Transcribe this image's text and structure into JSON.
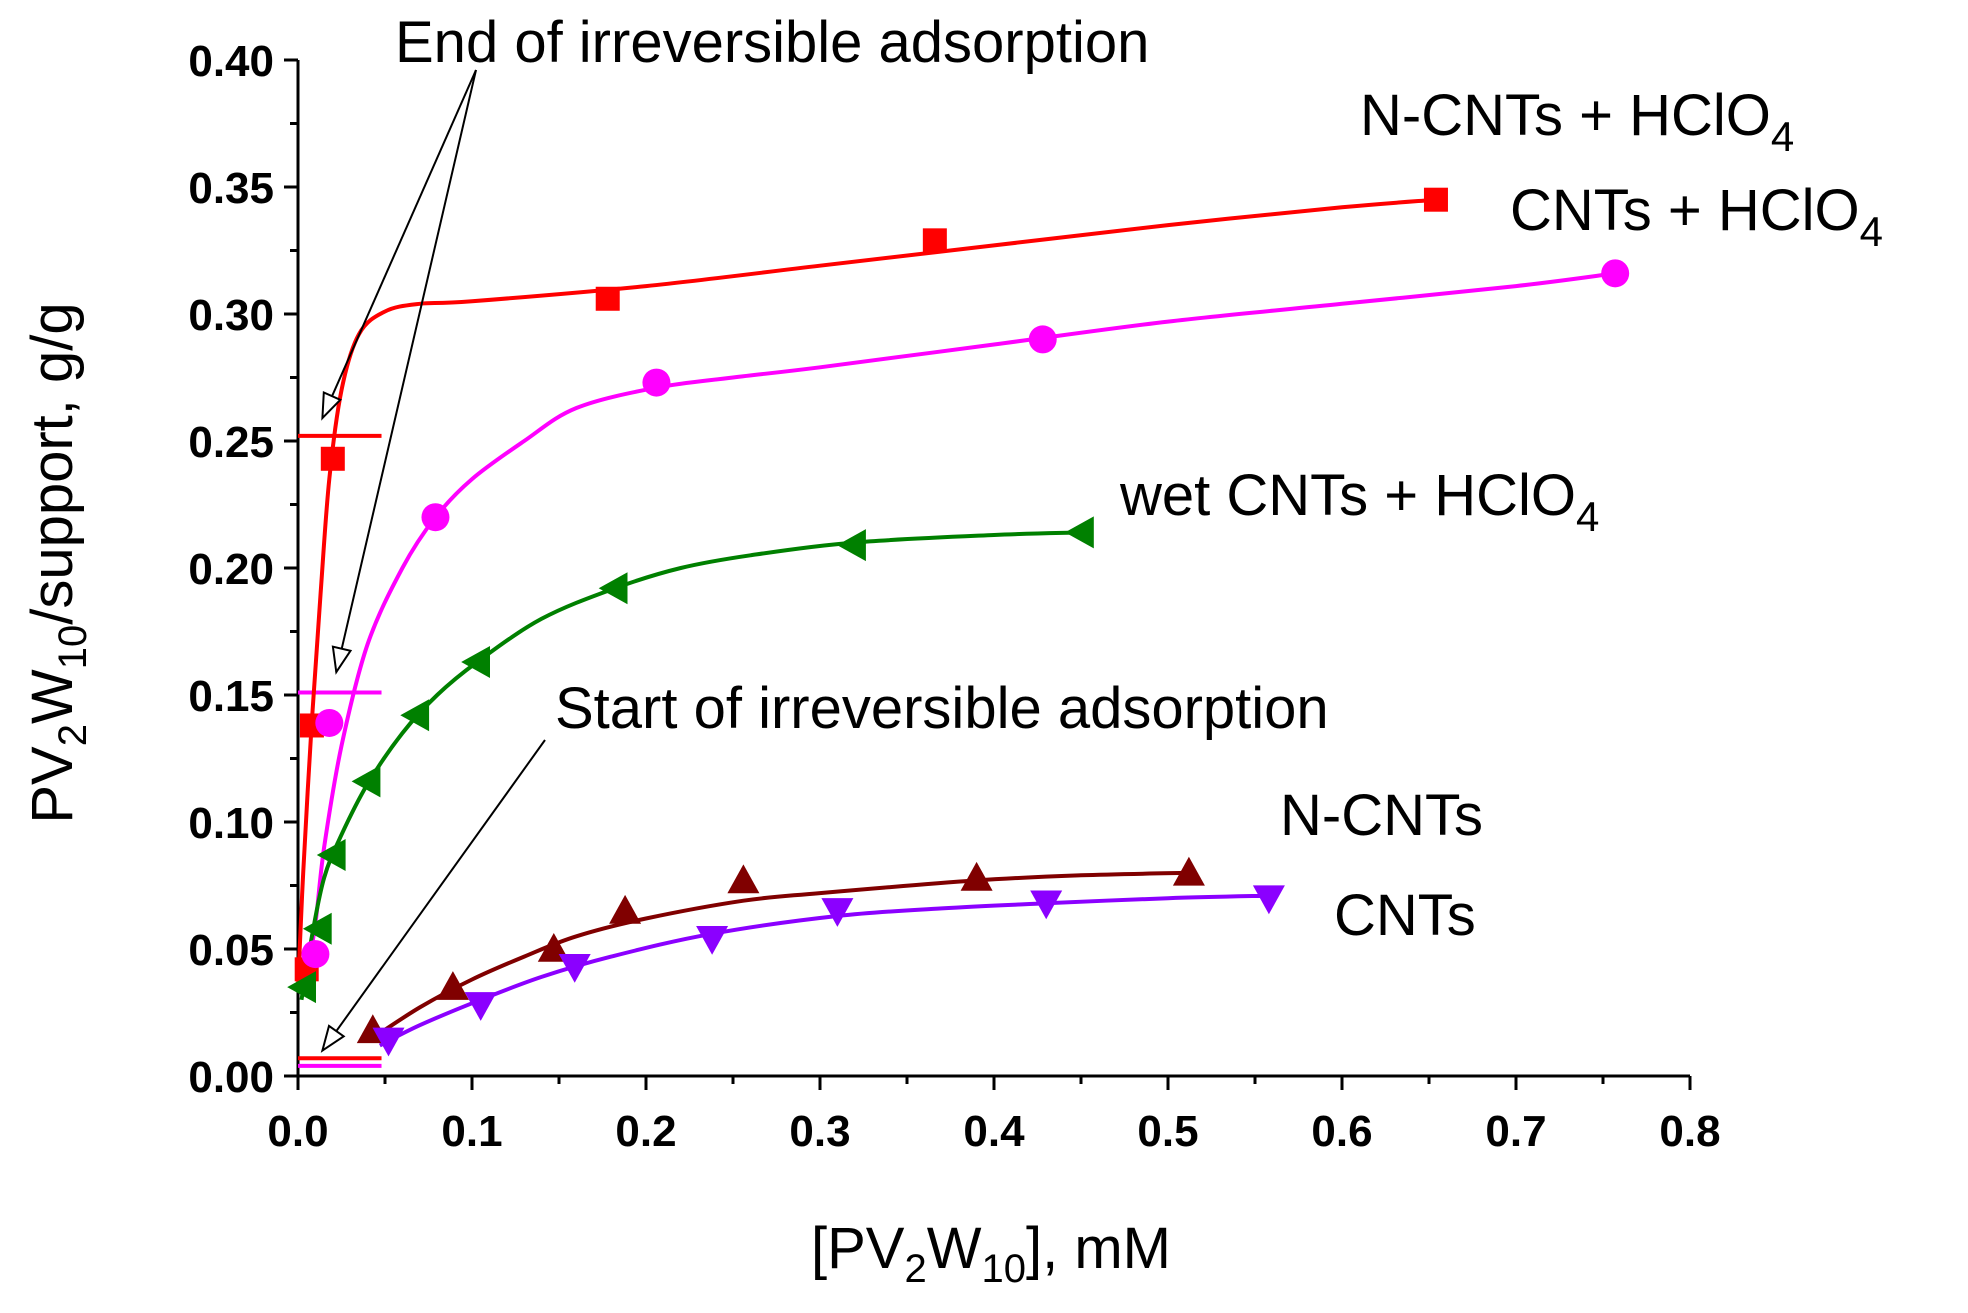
{
  "chart_data": {
    "type": "scatter",
    "title": "",
    "xlabel": {
      "prefix": "[PV",
      "sub1": "2",
      "mid": "W",
      "sub2": "10",
      "suffix": "], mM"
    },
    "ylabel": {
      "prefix": "PV",
      "sub1": "2",
      "mid": "W",
      "sub2": "10",
      "suffix": "/support, g/g"
    },
    "xlim": [
      0,
      0.8
    ],
    "ylim": [
      0,
      0.4
    ],
    "x_ticks": [
      "0.0",
      "0.1",
      "0.2",
      "0.3",
      "0.4",
      "0.5",
      "0.6",
      "0.7",
      "0.8"
    ],
    "y_ticks": [
      "0.00",
      "0.05",
      "0.10",
      "0.15",
      "0.20",
      "0.25",
      "0.30",
      "0.35",
      "0.40"
    ],
    "grid": false,
    "series": [
      {
        "name": "N-CNTs + HClO4",
        "label": {
          "text": "N-CNTs + HClO",
          "sub": "4"
        },
        "color": "#ff0000",
        "marker": "square",
        "points": [
          [
            0.005,
            0.042
          ],
          [
            0.008,
            0.138
          ],
          [
            0.02,
            0.243
          ],
          [
            0.178,
            0.306
          ],
          [
            0.366,
            0.329
          ],
          [
            0.654,
            0.345
          ]
        ],
        "curve": [
          [
            0,
            0.035
          ],
          [
            0.003,
            0.08
          ],
          [
            0.008,
            0.14
          ],
          [
            0.013,
            0.19
          ],
          [
            0.018,
            0.235
          ],
          [
            0.025,
            0.27
          ],
          [
            0.035,
            0.292
          ],
          [
            0.05,
            0.301
          ],
          [
            0.07,
            0.304
          ],
          [
            0.1,
            0.305
          ],
          [
            0.2,
            0.311
          ],
          [
            0.3,
            0.319
          ],
          [
            0.4,
            0.327
          ],
          [
            0.5,
            0.335
          ],
          [
            0.6,
            0.342
          ],
          [
            0.654,
            0.345
          ]
        ]
      },
      {
        "name": "CNTs + HClO4",
        "label": {
          "text": "CNTs + HClO",
          "sub": "4"
        },
        "color": "#ff00ff",
        "marker": "circle",
        "points": [
          [
            0.01,
            0.048
          ],
          [
            0.018,
            0.139
          ],
          [
            0.079,
            0.22
          ],
          [
            0.206,
            0.273
          ],
          [
            0.428,
            0.29
          ],
          [
            0.757,
            0.316
          ]
        ],
        "curve": [
          [
            0.005,
            0.04
          ],
          [
            0.01,
            0.06
          ],
          [
            0.015,
            0.09
          ],
          [
            0.025,
            0.13
          ],
          [
            0.04,
            0.17
          ],
          [
            0.06,
            0.2
          ],
          [
            0.079,
            0.22
          ],
          [
            0.1,
            0.235
          ],
          [
            0.13,
            0.25
          ],
          [
            0.16,
            0.263
          ],
          [
            0.206,
            0.271
          ],
          [
            0.25,
            0.275
          ],
          [
            0.3,
            0.279
          ],
          [
            0.4,
            0.288
          ],
          [
            0.5,
            0.297
          ],
          [
            0.6,
            0.304
          ],
          [
            0.7,
            0.311
          ],
          [
            0.757,
            0.316
          ]
        ]
      },
      {
        "name": "wet CNTs + HClO4",
        "label": {
          "text": "wet CNTs + HClO",
          "sub": "4"
        },
        "color": "#008000",
        "marker": "triangle-left",
        "points": [
          [
            0.003,
            0.035
          ],
          [
            0.012,
            0.058
          ],
          [
            0.02,
            0.087
          ],
          [
            0.04,
            0.116
          ],
          [
            0.068,
            0.142
          ],
          [
            0.103,
            0.163
          ],
          [
            0.182,
            0.192
          ],
          [
            0.319,
            0.209
          ],
          [
            0.45,
            0.214
          ]
        ],
        "curve": [
          [
            0.002,
            0.03
          ],
          [
            0.008,
            0.055
          ],
          [
            0.015,
            0.078
          ],
          [
            0.025,
            0.095
          ],
          [
            0.04,
            0.115
          ],
          [
            0.06,
            0.135
          ],
          [
            0.08,
            0.15
          ],
          [
            0.103,
            0.163
          ],
          [
            0.14,
            0.18
          ],
          [
            0.182,
            0.192
          ],
          [
            0.22,
            0.2
          ],
          [
            0.26,
            0.205
          ],
          [
            0.319,
            0.21
          ],
          [
            0.4,
            0.213
          ],
          [
            0.45,
            0.214
          ]
        ]
      },
      {
        "name": "N-CNTs",
        "label": {
          "text": "N-CNTs",
          "sub": ""
        },
        "color": "#800000",
        "marker": "triangle-up",
        "points": [
          [
            0.043,
            0.018
          ],
          [
            0.089,
            0.035
          ],
          [
            0.147,
            0.05
          ],
          [
            0.188,
            0.065
          ],
          [
            0.256,
            0.077
          ],
          [
            0.39,
            0.078
          ],
          [
            0.512,
            0.08
          ]
        ],
        "curve": [
          [
            0.043,
            0.015
          ],
          [
            0.07,
            0.027
          ],
          [
            0.1,
            0.038
          ],
          [
            0.13,
            0.047
          ],
          [
            0.16,
            0.055
          ],
          [
            0.2,
            0.062
          ],
          [
            0.256,
            0.069
          ],
          [
            0.3,
            0.072
          ],
          [
            0.39,
            0.077
          ],
          [
            0.45,
            0.079
          ],
          [
            0.512,
            0.08
          ]
        ]
      },
      {
        "name": "CNTs",
        "label": {
          "text": "CNTs",
          "sub": ""
        },
        "color": "#8b00ff",
        "marker": "triangle-down",
        "points": [
          [
            0.052,
            0.014
          ],
          [
            0.105,
            0.028
          ],
          [
            0.159,
            0.043
          ],
          [
            0.238,
            0.054
          ],
          [
            0.31,
            0.065
          ],
          [
            0.43,
            0.068
          ],
          [
            0.558,
            0.07
          ]
        ],
        "curve": [
          [
            0.047,
            0.012
          ],
          [
            0.07,
            0.02
          ],
          [
            0.105,
            0.03
          ],
          [
            0.14,
            0.039
          ],
          [
            0.18,
            0.047
          ],
          [
            0.238,
            0.056
          ],
          [
            0.31,
            0.063
          ],
          [
            0.37,
            0.066
          ],
          [
            0.43,
            0.068
          ],
          [
            0.5,
            0.07
          ],
          [
            0.558,
            0.071
          ]
        ]
      }
    ],
    "reference_lines": [
      {
        "name": "red-end-level",
        "color": "#ff0000",
        "y": 0.252,
        "x": [
          0,
          0.048
        ]
      },
      {
        "name": "magenta-end-level",
        "color": "#ff00ff",
        "y": 0.151,
        "x": [
          0,
          0.048
        ]
      },
      {
        "name": "red-start-level",
        "color": "#ff0000",
        "y": 0.007,
        "x": [
          0,
          0.048
        ]
      },
      {
        "name": "magenta-start-level",
        "color": "#ff00ff",
        "y": 0.004,
        "x": [
          0,
          0.048
        ]
      }
    ],
    "annotations": [
      {
        "text": "End of irreversible adsorption",
        "arrow_targets": [
          [
            0.014,
            0.259
          ],
          [
            0.022,
            0.159
          ]
        ]
      },
      {
        "text": "Start of irreversible adsorption",
        "arrow_targets": [
          [
            0.014,
            0.01
          ]
        ]
      }
    ]
  }
}
